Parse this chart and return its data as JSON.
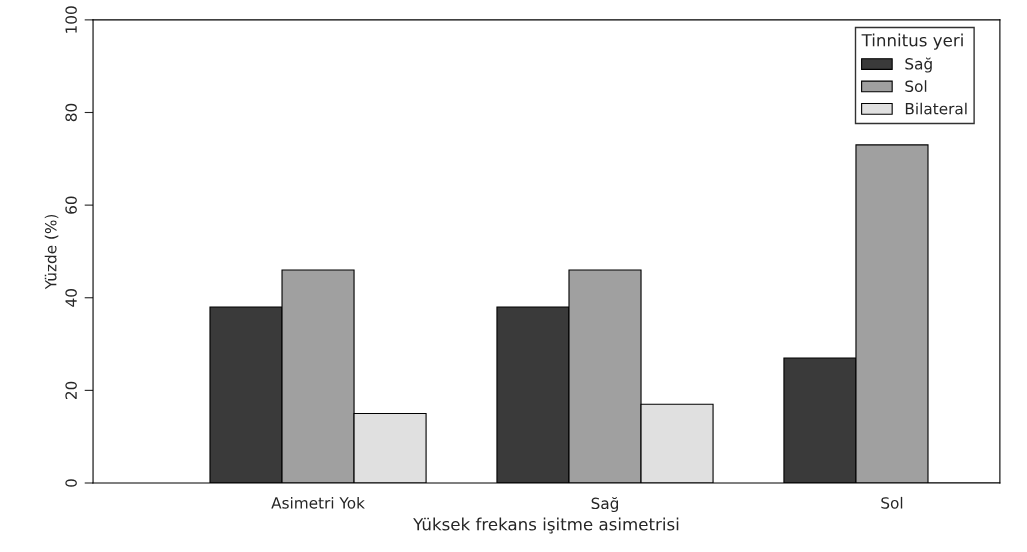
{
  "chart_data": {
    "type": "bar",
    "xlabel": "Yüksek frekans işitme asimetrisi",
    "ylabel": "Yüzde (%)",
    "legend_title": "Tinnitus yeri",
    "categories": [
      "Asimetri Yok",
      "Sağ",
      "Sol"
    ],
    "series": [
      {
        "name": "Sağ",
        "color": "#3a3a3a",
        "values": [
          38,
          38,
          27
        ]
      },
      {
        "name": "Sol",
        "color": "#a0a0a0",
        "values": [
          46,
          46,
          73
        ]
      },
      {
        "name": "Bilateral",
        "color": "#e0e0e0",
        "values": [
          15,
          17,
          0
        ]
      }
    ],
    "ylim": [
      0,
      100
    ],
    "yticks": [
      0,
      20,
      40,
      60,
      80,
      100
    ],
    "grid": false,
    "legend": "top right"
  }
}
